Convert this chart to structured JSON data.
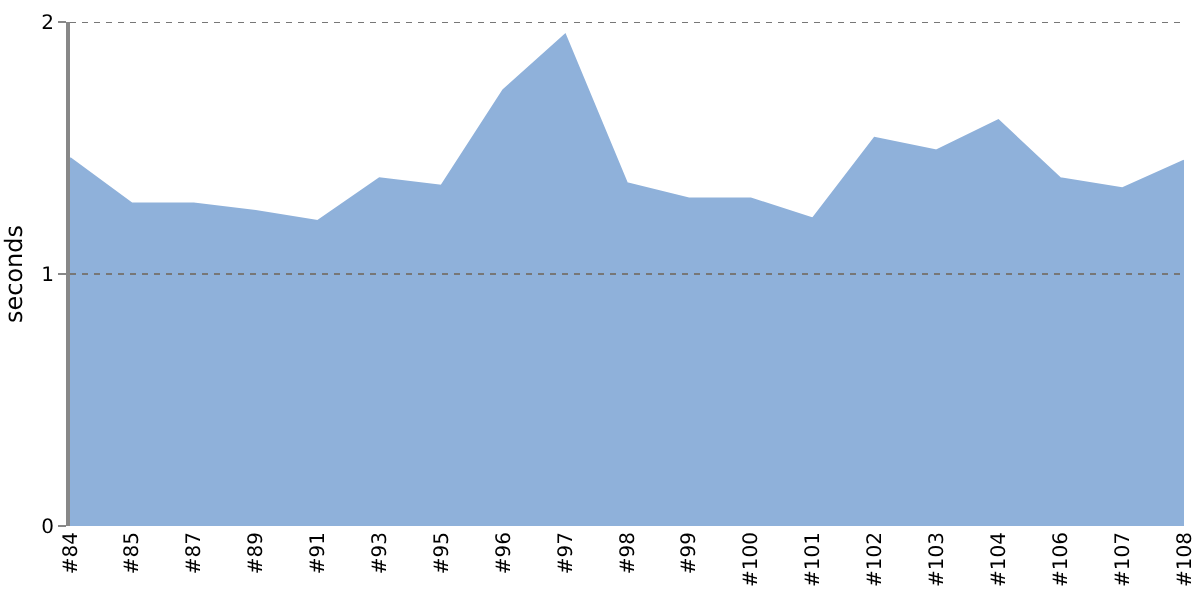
{
  "chart_data": {
    "type": "area",
    "ylabel": "seconds",
    "categories": [
      "#84",
      "#85",
      "#87",
      "#89",
      "#91",
      "#93",
      "#95",
      "#96",
      "#97",
      "#98",
      "#99",
      "#100",
      "#101",
      "#102",
      "#103",
      "#104",
      "#106",
      "#107",
      "#108"
    ],
    "series": [
      {
        "color": "#8fb1da",
        "values": [
          1.46,
          1.28,
          1.28,
          1.25,
          1.21,
          1.38,
          1.35,
          1.73,
          1.95,
          1.36,
          1.3,
          1.3,
          1.22,
          1.54,
          1.49,
          1.61,
          1.38,
          1.34,
          1.45
        ]
      }
    ],
    "ylim": [
      0,
      2
    ],
    "yticks": [
      0,
      1,
      2
    ],
    "grid": "y"
  }
}
